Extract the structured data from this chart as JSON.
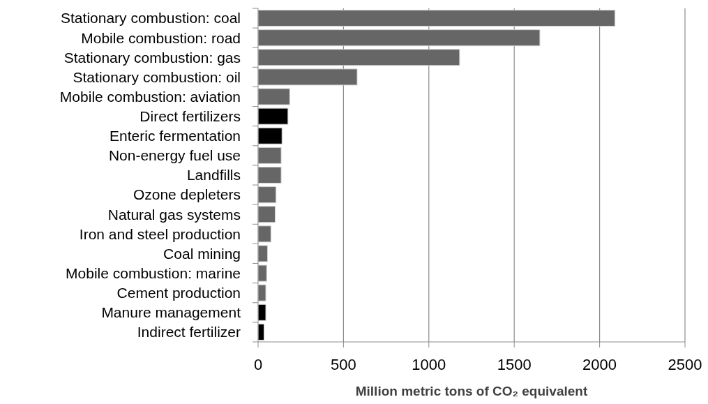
{
  "chart_data": {
    "type": "bar",
    "orientation": "horizontal",
    "xlabel": "Million metric tons of CO₂ equivalent",
    "categories": [
      "Stationary combustion: coal",
      "Mobile combustion: road",
      "Stationary combustion: gas",
      "Stationary combustion: oil",
      "Mobile combustion: aviation",
      "Direct fertilizers",
      "Enteric fermentation",
      "Non-energy fuel use",
      "Landfills",
      "Ozone depleters",
      "Natural gas systems",
      "Iron and steel production",
      "Coal mining",
      "Mobile combustion: marine",
      "Cement production",
      "Manure management",
      "Indirect fertilizer"
    ],
    "values": [
      2090,
      1650,
      1180,
      580,
      185,
      175,
      140,
      135,
      135,
      105,
      100,
      75,
      55,
      50,
      45,
      45,
      35
    ],
    "colors": [
      "#666666",
      "#666666",
      "#666666",
      "#666666",
      "#666666",
      "#000000",
      "#000000",
      "#666666",
      "#666666",
      "#666666",
      "#666666",
      "#666666",
      "#666666",
      "#666666",
      "#666666",
      "#000000",
      "#000000"
    ],
    "xlim": [
      0,
      2500
    ],
    "xticks": [
      0,
      500,
      1000,
      1500,
      2000,
      2500
    ],
    "grid": "x"
  }
}
